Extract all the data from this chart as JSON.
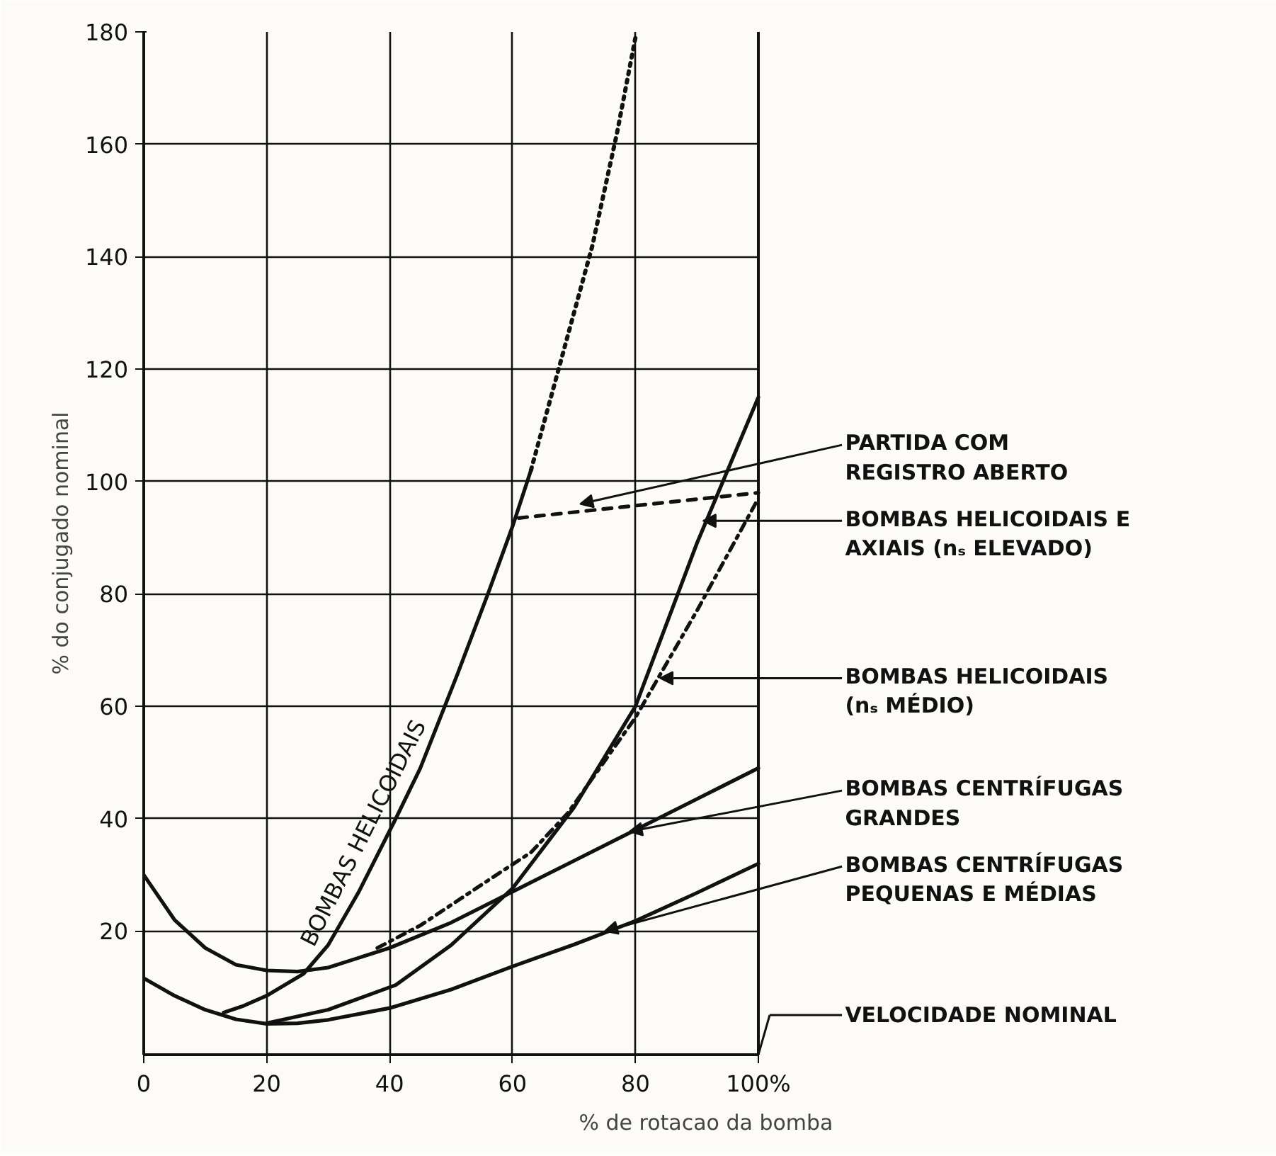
{
  "chart_data": {
    "type": "line",
    "xlabel": "% de rotacao da bomba",
    "ylabel": "% do conjugado nominal",
    "xlim": [
      0,
      100
    ],
    "ylim": [
      -2,
      180
    ],
    "xticks": [
      0,
      20,
      40,
      60,
      80,
      {
        "value": 100,
        "label": "100%"
      }
    ],
    "yticks": [
      20,
      40,
      60,
      80,
      100,
      120,
      140,
      160,
      180
    ],
    "grid": true,
    "legend": false,
    "ref_lines": [
      {
        "axis": "x",
        "value": 100,
        "label": "VELOCIDADE NOMINAL"
      }
    ],
    "series": [
      {
        "color": "#111111",
        "line_style": "solid",
        "x": [
          0,
          5,
          10,
          15,
          20,
          25,
          30,
          40,
          50,
          60,
          70,
          80,
          90,
          100
        ],
        "values": [
          30,
          22,
          17,
          14,
          13,
          12.8,
          13.5,
          17,
          21.5,
          27,
          32.5,
          38,
          43.5,
          49
        ]
      },
      {
        "color": "#111111",
        "line_style": "solid",
        "x": [
          0,
          5,
          10,
          15,
          20,
          25,
          30,
          40,
          50,
          60,
          70,
          80,
          90,
          100
        ],
        "values": [
          11.6,
          8.5,
          6,
          4.3,
          3.5,
          3.6,
          4.2,
          6.3,
          9.6,
          13.7,
          17.6,
          21.8,
          26.8,
          32
        ]
      },
      {
        "name": "BOMBAS HELICOIDAIS",
        "color": "#111111",
        "line_style": "solid",
        "x": [
          13,
          16,
          20,
          26,
          30,
          35,
          41,
          45,
          51,
          56,
          60,
          63
        ],
        "values": [
          5.5,
          6.6,
          8.5,
          12.4,
          17.5,
          27,
          40,
          49,
          65.6,
          80,
          92,
          102
        ]
      },
      {
        "color": "#111111",
        "line_style": "dotted",
        "x": [
          63,
          68,
          73,
          77,
          80
        ],
        "values": [
          102,
          122,
          142,
          162,
          179
        ]
      },
      {
        "color": "#111111",
        "line_style": "dashed",
        "x": [
          61,
          100
        ],
        "values": [
          93.5,
          98
        ]
      },
      {
        "color": "#111111",
        "line_style": "solid",
        "x": [
          20,
          30,
          41,
          50,
          60,
          70,
          80,
          90,
          100
        ],
        "values": [
          3.6,
          6,
          10.4,
          17.5,
          27.6,
          42,
          60,
          89,
          115
        ]
      },
      {
        "color": "#111111",
        "line_style": "dashdot",
        "x": [
          38,
          45,
          56,
          63,
          69,
          80,
          90,
          100
        ],
        "values": [
          17,
          21,
          29,
          34,
          41,
          58,
          77,
          97
        ]
      }
    ],
    "annotations": [
      {
        "text": "PARTIDA COM\nREGISTRO ABERTO",
        "x": 71,
        "y": 96
      },
      {
        "text": "BOMBAS HELICOIDAIS E\nAXIAIS (nₛ ELEVADO)",
        "x": 91,
        "y": 93
      },
      {
        "text": "BOMBAS HELICOIDAIS\n(nₛ MÉDIO)",
        "x": 84,
        "y": 65
      },
      {
        "text": "BOMBAS CENTRÍFUGAS\nGRANDES",
        "x": 79,
        "y": 37.7
      },
      {
        "text": "BOMBAS CENTRÍFUGAS\nPEQUENAS E MÉDIAS",
        "x": 75,
        "y": 20
      }
    ]
  }
}
